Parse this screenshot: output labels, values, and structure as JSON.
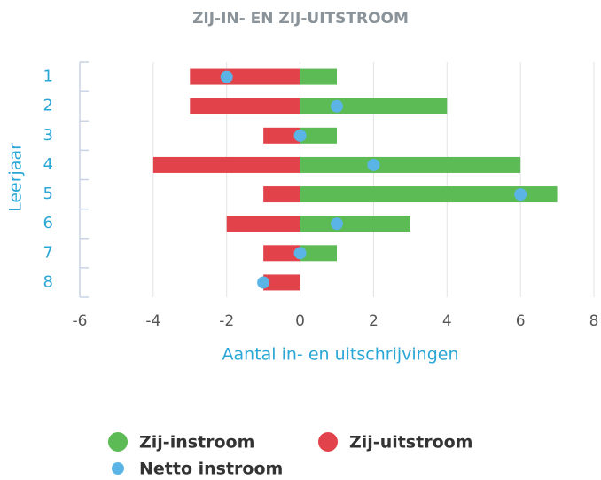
{
  "chart_data": {
    "type": "bar",
    "orientation": "horizontal",
    "title": "ZIJ-IN- EN ZIJ-UITSTROOM",
    "x_label": "Aantal in- en uitschrijvingen",
    "y_label": "Leerjaar",
    "categories": [
      "1",
      "2",
      "3",
      "4",
      "5",
      "6",
      "7",
      "8"
    ],
    "series": [
      {
        "name": "Zij-instroom",
        "color": "#5cbb54",
        "values": [
          1,
          4,
          1,
          6,
          7,
          3,
          1,
          0
        ]
      },
      {
        "name": "Zij-uitstroom",
        "color": "#e2434a",
        "values": [
          -3,
          -3,
          -1,
          -4,
          -1,
          -2,
          -1,
          -1
        ]
      },
      {
        "name": "Netto instroom",
        "color": "#5ab4e5",
        "type": "scatter",
        "values": [
          -2,
          1,
          0,
          2,
          6,
          1,
          0,
          -1
        ]
      }
    ],
    "xlim": [
      -6,
      8
    ],
    "xticks": [
      -6,
      -4,
      -2,
      0,
      2,
      4,
      6,
      8
    ],
    "grid": true,
    "legend": "bottom"
  }
}
